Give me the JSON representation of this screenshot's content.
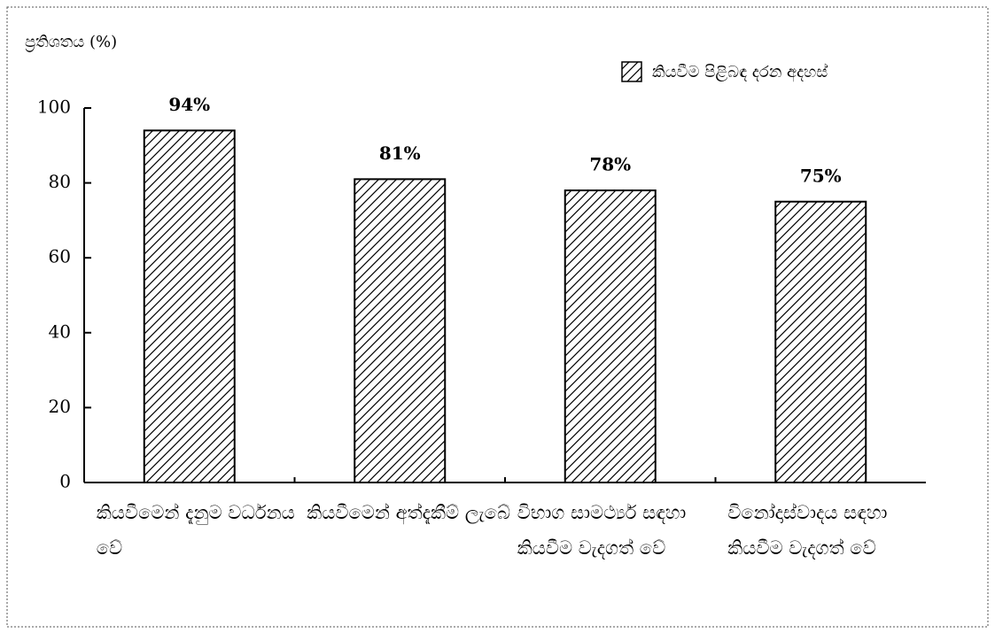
{
  "chart_data": {
    "type": "bar",
    "y_label": "ප්‍රතිශතය (%)",
    "categories": [
      "කියවීමෙන් දැනුම වර්ධනය වේ",
      "කියවීමෙන් අත්දැකීම් ලැබේ",
      "විභාග සාමර්ථ්‍ය සඳහා කියවීම වැදගත් වේ",
      "විනෝදාස්වාදය සඳහා කියවීම වැදගත් වේ"
    ],
    "series": [
      {
        "name": "කියවීම පිළිබඳ දරන අදහස්",
        "color": "#000000",
        "values": [
          94,
          81,
          78,
          75
        ],
        "value_labels": [
          "94%",
          "81%",
          "78%",
          "75%"
        ]
      }
    ],
    "ylim": [
      0,
      100
    ],
    "yticks": [
      0,
      20,
      40,
      60,
      80,
      100
    ],
    "hatch": true,
    "legend": "top-right"
  }
}
